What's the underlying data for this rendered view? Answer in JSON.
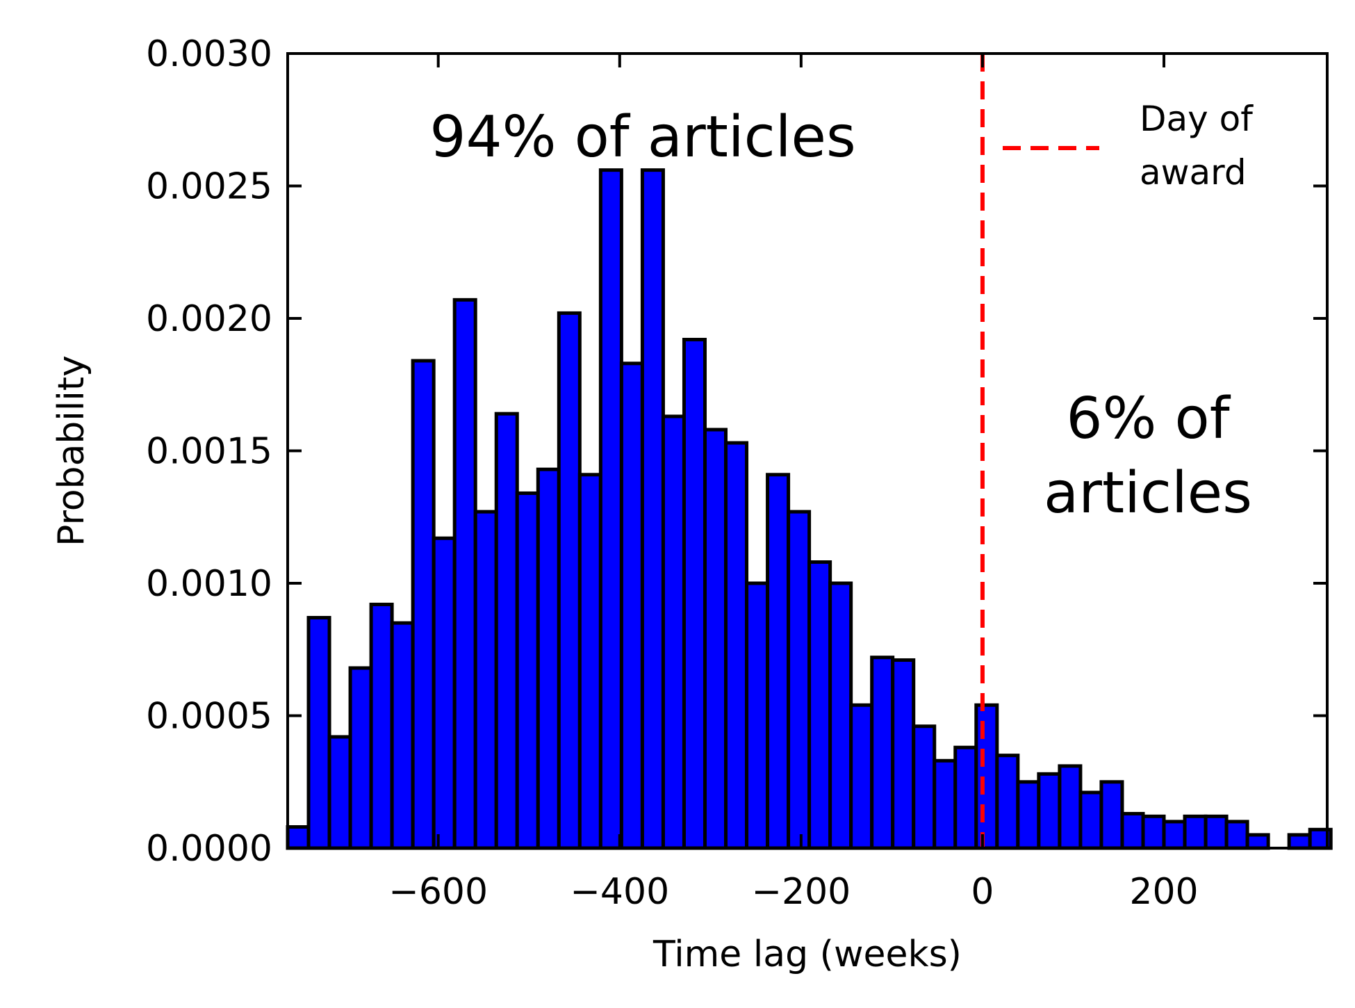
{
  "chart_data": {
    "type": "bar",
    "xlabel": "Time lag (weeks)",
    "ylabel": "Probability",
    "xlim": [
      -766,
      380
    ],
    "ylim": [
      0,
      0.003
    ],
    "x_ticks": [
      {
        "value": -600,
        "label": "−600"
      },
      {
        "value": -400,
        "label": "−400"
      },
      {
        "value": -200,
        "label": "−200"
      },
      {
        "value": 0,
        "label": "0"
      },
      {
        "value": 200,
        "label": "200"
      }
    ],
    "y_ticks": [
      {
        "value": 0,
        "label": "0.0000"
      },
      {
        "value": 0.0005,
        "label": "0.0005"
      },
      {
        "value": 0.001,
        "label": "0.0010"
      },
      {
        "value": 0.0015,
        "label": "0.0015"
      },
      {
        "value": 0.002,
        "label": "0.0020"
      },
      {
        "value": 0.0025,
        "label": "0.0025"
      },
      {
        "value": 0.003,
        "label": "0.0030"
      }
    ],
    "bin_start": -766,
    "bin_width": 23,
    "values": [
      8e-05,
      0.00087,
      0.00042,
      0.00068,
      0.00092,
      0.00085,
      0.00184,
      0.00117,
      0.00207,
      0.00127,
      0.00164,
      0.00134,
      0.00143,
      0.00202,
      0.00141,
      0.00256,
      0.00183,
      0.00256,
      0.00163,
      0.00192,
      0.00158,
      0.00153,
      0.001,
      0.00141,
      0.00127,
      0.00108,
      0.001,
      0.00054,
      0.00072,
      0.00071,
      0.00046,
      0.00033,
      0.00038,
      0.00054,
      0.00035,
      0.00025,
      0.00028,
      0.00031,
      0.00021,
      0.00025,
      0.00013,
      0.00012,
      0.0001,
      0.00012,
      0.00012,
      0.0001,
      5e-05,
      0.0,
      5e-05,
      7e-05
    ],
    "bar_color": "#0000ff",
    "edge_color": "#000000",
    "vline": {
      "x": 0,
      "color": "#ff0000",
      "style": "dashed"
    },
    "legend": {
      "entries": [
        {
          "label_line1": "Day of",
          "label_line2": "award",
          "color": "#ff0000",
          "style": "dashed"
        }
      ],
      "position": "top-right"
    },
    "annotations": {
      "left": "94% of articles",
      "right_line1": "6% of",
      "right_line2": "articles"
    }
  }
}
